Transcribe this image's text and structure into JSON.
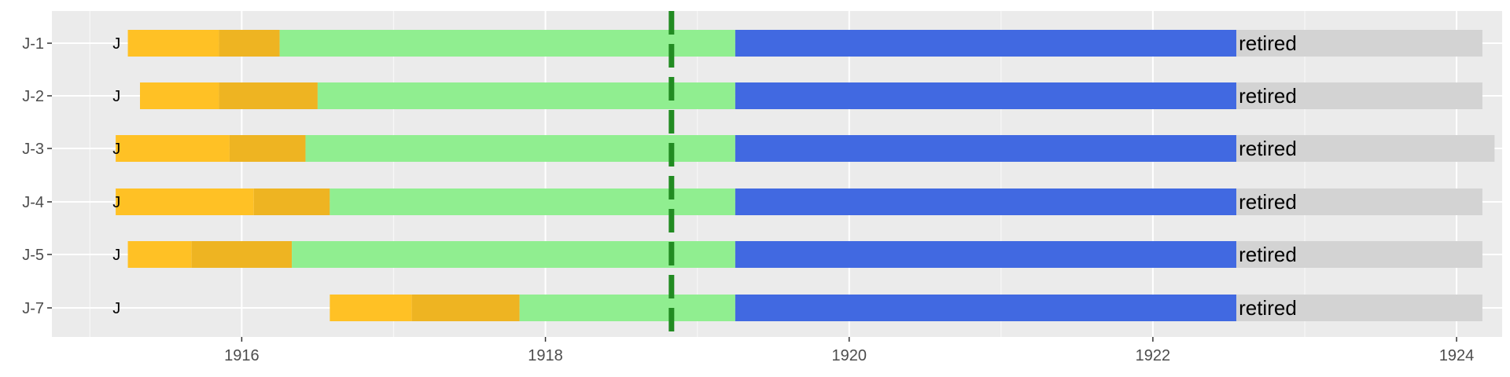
{
  "chart_data": {
    "type": "gantt",
    "title": "",
    "xlabel": "",
    "ylabel": "",
    "xlim": [
      1914.75,
      1924.3
    ],
    "x_ticks": [
      1916,
      1918,
      1920,
      1922,
      1924
    ],
    "x_tick_labels": [
      "1916",
      "1918",
      "1920",
      "1922",
      "1924"
    ],
    "grid": true,
    "legend": "none",
    "reference_line": {
      "x": 1918.83,
      "style": "dashed",
      "color": "#228B22"
    },
    "segment_colors": {
      "stage1": "#FFC125",
      "stage2": "#EEB422",
      "stage3": "#90EE90",
      "stage4": "#4169E1",
      "retired": "#D3D3D3"
    },
    "rows": [
      {
        "label": "J-1",
        "marker": "J",
        "marker_x": 1915.15,
        "end_text": "retired",
        "segments": [
          {
            "stage": "stage1",
            "start": 1915.25,
            "end": 1915.85
          },
          {
            "stage": "stage2",
            "start": 1915.85,
            "end": 1916.25
          },
          {
            "stage": "stage3",
            "start": 1916.25,
            "end": 1919.25
          },
          {
            "stage": "stage4",
            "start": 1919.25,
            "end": 1922.55
          },
          {
            "stage": "retired",
            "start": 1922.55,
            "end": 1924.17
          }
        ]
      },
      {
        "label": "J-2",
        "marker": "J",
        "marker_x": 1915.15,
        "end_text": "retired",
        "segments": [
          {
            "stage": "stage1",
            "start": 1915.33,
            "end": 1915.85
          },
          {
            "stage": "stage2",
            "start": 1915.85,
            "end": 1916.5
          },
          {
            "stage": "stage3",
            "start": 1916.5,
            "end": 1919.25
          },
          {
            "stage": "stage4",
            "start": 1919.25,
            "end": 1922.55
          },
          {
            "stage": "retired",
            "start": 1922.55,
            "end": 1924.17
          }
        ]
      },
      {
        "label": "J-3",
        "marker": "J",
        "marker_x": 1915.15,
        "end_text": "retired",
        "segments": [
          {
            "stage": "stage1",
            "start": 1915.17,
            "end": 1915.92
          },
          {
            "stage": "stage2",
            "start": 1915.92,
            "end": 1916.42
          },
          {
            "stage": "stage3",
            "start": 1916.42,
            "end": 1919.25
          },
          {
            "stage": "stage4",
            "start": 1919.25,
            "end": 1922.55
          },
          {
            "stage": "retired",
            "start": 1922.55,
            "end": 1924.25
          }
        ]
      },
      {
        "label": "J-4",
        "marker": "J",
        "marker_x": 1915.15,
        "end_text": "retired",
        "segments": [
          {
            "stage": "stage1",
            "start": 1915.17,
            "end": 1916.08
          },
          {
            "stage": "stage2",
            "start": 1916.08,
            "end": 1916.58
          },
          {
            "stage": "stage3",
            "start": 1916.58,
            "end": 1919.25
          },
          {
            "stage": "stage4",
            "start": 1919.25,
            "end": 1922.55
          },
          {
            "stage": "retired",
            "start": 1922.55,
            "end": 1924.17
          }
        ]
      },
      {
        "label": "J-5",
        "marker": "J",
        "marker_x": 1915.15,
        "end_text": "retired",
        "segments": [
          {
            "stage": "stage1",
            "start": 1915.25,
            "end": 1915.67
          },
          {
            "stage": "stage2",
            "start": 1915.67,
            "end": 1916.33
          },
          {
            "stage": "stage3",
            "start": 1916.33,
            "end": 1919.25
          },
          {
            "stage": "stage4",
            "start": 1919.25,
            "end": 1922.55
          },
          {
            "stage": "retired",
            "start": 1922.55,
            "end": 1924.17
          }
        ]
      },
      {
        "label": "J-7",
        "marker": "J",
        "marker_x": 1915.15,
        "end_text": "retired",
        "segments": [
          {
            "stage": "stage1",
            "start": 1916.58,
            "end": 1917.12
          },
          {
            "stage": "stage2",
            "start": 1917.12,
            "end": 1917.83
          },
          {
            "stage": "stage3",
            "start": 1917.83,
            "end": 1919.25
          },
          {
            "stage": "stage4",
            "start": 1919.25,
            "end": 1922.55
          },
          {
            "stage": "retired",
            "start": 1922.55,
            "end": 1924.17
          }
        ]
      }
    ]
  }
}
